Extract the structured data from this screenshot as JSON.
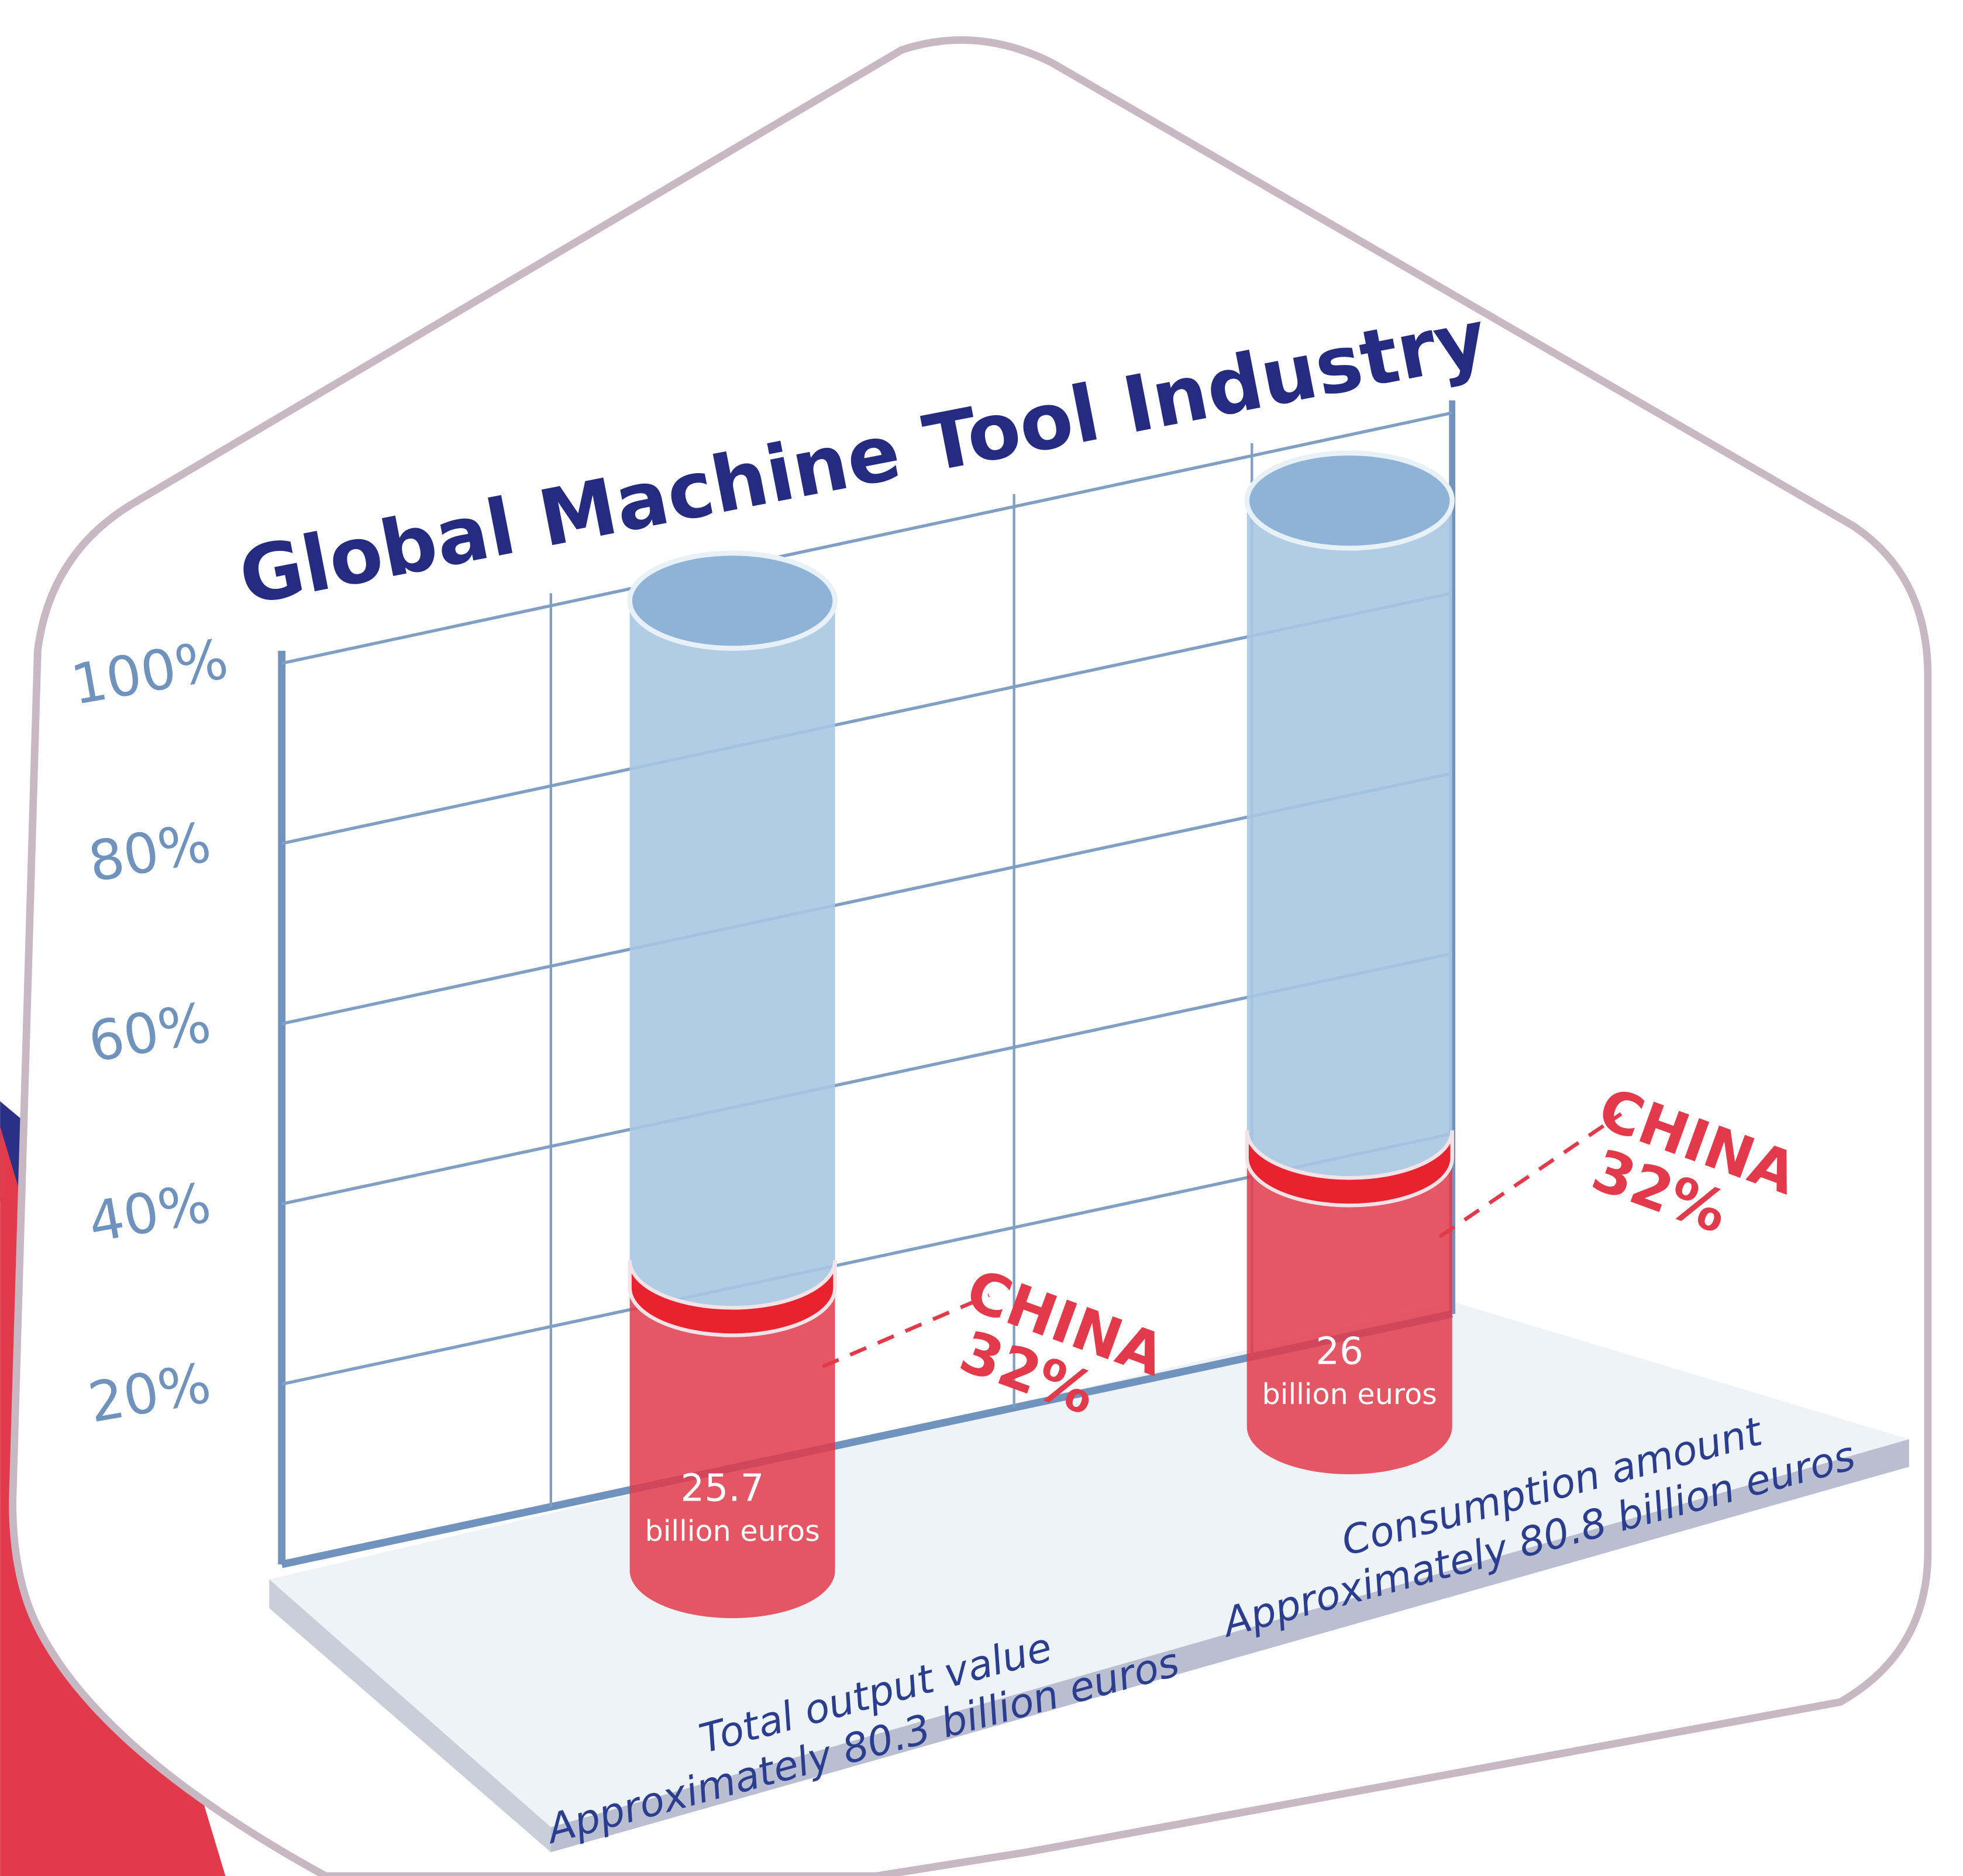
{
  "chart_data": {
    "type": "bar",
    "title": "Global Machine Tool Industry",
    "categories": [
      "Total output value",
      "Consumption amount"
    ],
    "category_totals": [
      "Approximately 80.3 billion euros",
      "Approximately 80.8 billion euros"
    ],
    "amounts": [
      25.7,
      26
    ],
    "amount_units": [
      "billion euros",
      "billion euros"
    ],
    "series": [
      {
        "name": "CHINA",
        "color": "#e23a4a",
        "values": [
          32,
          32
        ],
        "value_labels": [
          "32%",
          "32%"
        ]
      }
    ],
    "ylim": [
      0,
      100
    ],
    "yticks": [
      {
        "value": 20,
        "label": "20%"
      },
      {
        "value": 40,
        "label": "40%"
      },
      {
        "value": 60,
        "label": "60%"
      },
      {
        "value": 80,
        "label": "80%"
      },
      {
        "value": 100,
        "label": "100%"
      }
    ],
    "grid": true
  }
}
